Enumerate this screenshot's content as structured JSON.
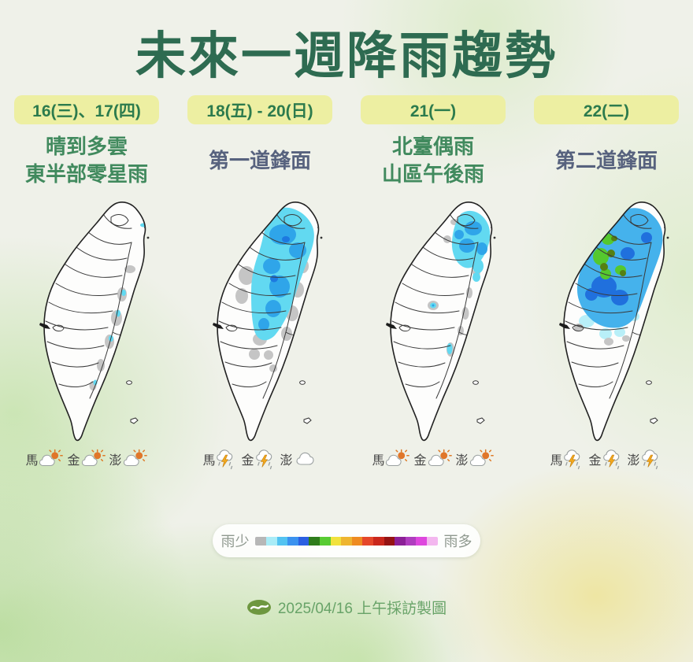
{
  "title": "未來一週降雨趨勢",
  "columns": [
    {
      "date": "16(三)、17(四)",
      "subtitle_lines": [
        "晴到多雲",
        "東半部零星雨"
      ],
      "subtitle_color": "green",
      "stations": [
        {
          "label": "馬",
          "icon": "partly-cloudy"
        },
        {
          "label": "金",
          "icon": "partly-cloudy"
        },
        {
          "label": "澎",
          "icon": "partly-cloudy"
        }
      ]
    },
    {
      "date": "18(五) - 20(日)",
      "subtitle_lines": [
        "第一道鋒面"
      ],
      "subtitle_color": "slate",
      "stations": [
        {
          "label": "馬",
          "icon": "thunderstorm"
        },
        {
          "label": "金",
          "icon": "thunderstorm"
        },
        {
          "label": "澎",
          "icon": "cloudy"
        }
      ]
    },
    {
      "date": "21(一)",
      "subtitle_lines": [
        "北臺偶雨",
        "山區午後雨"
      ],
      "subtitle_color": "green",
      "stations": [
        {
          "label": "馬",
          "icon": "partly-cloudy"
        },
        {
          "label": "金",
          "icon": "partly-cloudy"
        },
        {
          "label": "澎",
          "icon": "partly-cloudy"
        }
      ]
    },
    {
      "date": "22(二)",
      "subtitle_lines": [
        "第二道鋒面"
      ],
      "subtitle_color": "slate",
      "stations": [
        {
          "label": "馬",
          "icon": "thunderstorm"
        },
        {
          "label": "金",
          "icon": "thunderstorm"
        },
        {
          "label": "澎",
          "icon": "thunderstorm"
        }
      ]
    }
  ],
  "legend": {
    "low_label": "雨少",
    "high_label": "雨多",
    "colors": [
      "#b7b7b7",
      "#a9ecf7",
      "#53c3f1",
      "#3a92ef",
      "#2b5fe2",
      "#2e7c1b",
      "#57cb32",
      "#f1e23d",
      "#eeb530",
      "#ee8b21",
      "#e5472a",
      "#c9271c",
      "#951313",
      "#8b2097",
      "#af3dbf",
      "#de47de",
      "#f3b7ef"
    ]
  },
  "footer": {
    "caption": "2025/04/16 上午採訪製圖"
  },
  "map_colors": {
    "light_rain_gray": "#c5c5c5",
    "cyan": "#62d9f1",
    "pale_cyan": "#b8eff8",
    "blue": "#2fa5e9",
    "dark_blue": "#1d79e0",
    "green": "#55c82e",
    "olive_green": "#558012"
  }
}
